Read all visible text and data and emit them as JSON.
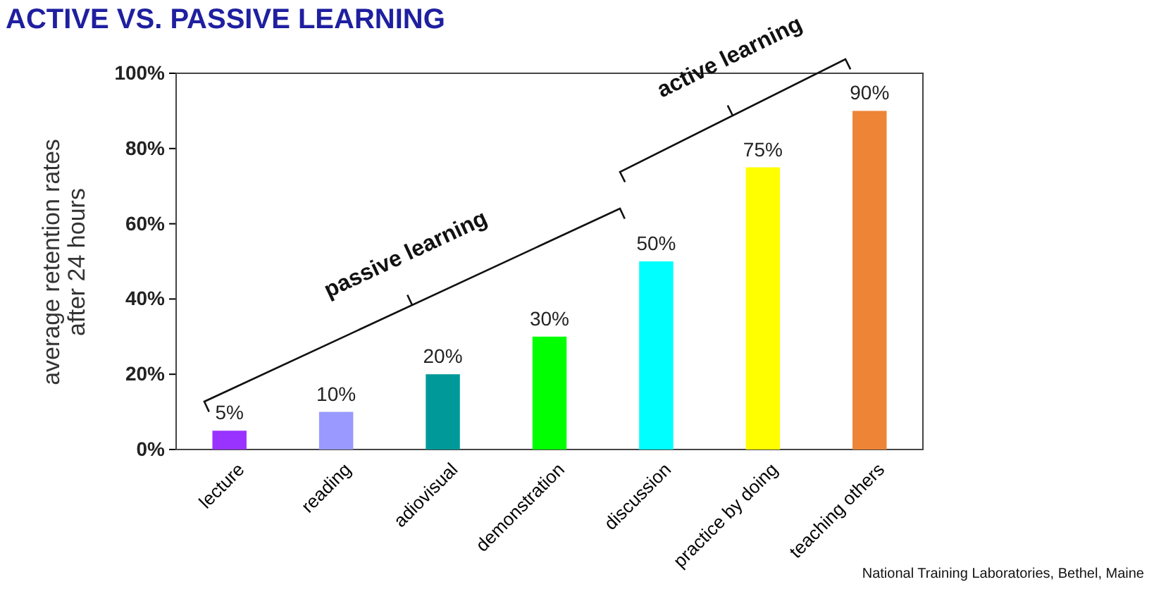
{
  "chart_data": {
    "type": "bar",
    "title": "ACTIVE VS. PASSIVE LEARNING",
    "ylabel": "average retention rates\nafter 24 hours",
    "categories": [
      "lecture",
      "reading",
      "adiovisual",
      "demonstration",
      "discussion",
      "practice by doing",
      "teaching others"
    ],
    "values": [
      5,
      10,
      20,
      30,
      50,
      75,
      90
    ],
    "colors": [
      "#9933ff",
      "#9999ff",
      "#009999",
      "#00ff00",
      "#00ffff",
      "#ffff00",
      "#ed8436"
    ],
    "value_labels": [
      "5%",
      "10%",
      "20%",
      "30%",
      "50%",
      "75%",
      "90%"
    ],
    "ylim": [
      0,
      100
    ],
    "yticks": [
      {
        "value": 0,
        "label": "0%"
      },
      {
        "value": 20,
        "label": "20%"
      },
      {
        "value": 40,
        "label": "40%"
      },
      {
        "value": 60,
        "label": "60%"
      },
      {
        "value": 80,
        "label": "80%"
      },
      {
        "value": 100,
        "label": "100%"
      }
    ],
    "grid": false,
    "annotations": [
      "passive learning",
      "active learning",
      "National Training Laboratories, Bethel, Maine"
    ]
  }
}
